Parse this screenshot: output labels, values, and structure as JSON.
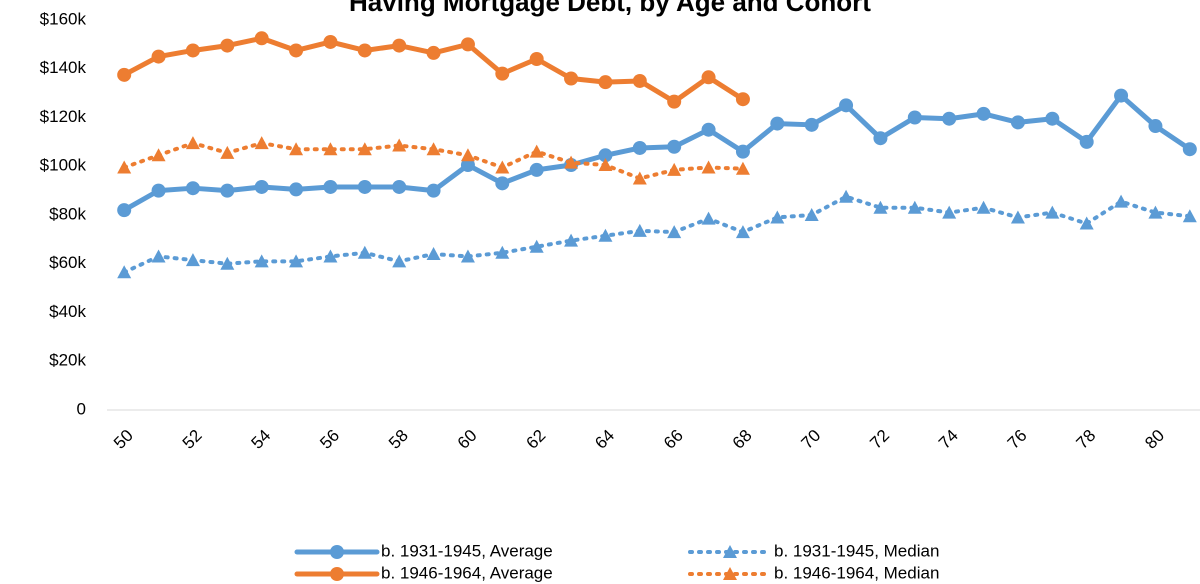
{
  "chart_data": {
    "type": "line",
    "title": "Having Mortgage Debt, by Age and Cohort",
    "x": [
      50,
      51,
      52,
      53,
      54,
      55,
      56,
      57,
      58,
      59,
      60,
      61,
      62,
      63,
      64,
      65,
      66,
      67,
      68,
      69,
      70,
      71,
      72,
      73,
      74,
      75,
      76,
      77,
      78,
      79,
      80,
      81
    ],
    "xlim": [
      49.5,
      81.5
    ],
    "xticks": [
      50,
      52,
      54,
      56,
      58,
      60,
      62,
      64,
      66,
      68,
      70,
      72,
      74,
      76,
      78,
      80
    ],
    "ylim": [
      0,
      160000
    ],
    "yticks": [
      0,
      {
        "value": 20000,
        "label": "$20k"
      },
      {
        "value": 40000,
        "label": "$40k"
      },
      {
        "value": 60000,
        "label": "$60k"
      },
      {
        "value": 80000,
        "label": "$80k"
      },
      {
        "value": 100000,
        "label": "$100k"
      },
      {
        "value": 120000,
        "label": "$120k"
      },
      {
        "value": 140000,
        "label": "$140k"
      },
      {
        "value": 160000,
        "label": "$160k"
      }
    ],
    "grid": false,
    "series": [
      {
        "name": "b. 1931-1945, Average",
        "color": "#5b9bd5",
        "line_style": "solid",
        "marker": "circle",
        "values": [
          82000,
          90000,
          91000,
          90000,
          91500,
          90500,
          91500,
          91500,
          91500,
          90000,
          100500,
          93000,
          98500,
          100500,
          104500,
          107500,
          108000,
          115000,
          106000,
          117500,
          117000,
          125000,
          111500,
          120000,
          119500,
          121500,
          118000,
          119500,
          110000,
          129000,
          116500,
          107000
        ]
      },
      {
        "name": "b. 1931-1945, Median",
        "color": "#5b9bd5",
        "line_style": "dotted",
        "marker": "triangle",
        "values": [
          56500,
          63000,
          61500,
          60000,
          61000,
          61000,
          63000,
          64500,
          61000,
          64000,
          63000,
          64500,
          67000,
          69500,
          71500,
          73500,
          73000,
          78500,
          73000,
          79000,
          80000,
          87500,
          83000,
          83000,
          81000,
          83000,
          79000,
          81000,
          76500,
          85500,
          81000,
          79500
        ]
      },
      {
        "name": "b. 1946-1964, Average",
        "color": "#ed7d31",
        "line_style": "solid",
        "marker": "circle",
        "values": [
          137500,
          145000,
          147500,
          149500,
          152500,
          147500,
          151000,
          147500,
          149500,
          146500,
          150000,
          138000,
          144000,
          136000,
          134500,
          135000,
          126500,
          136500,
          127500,
          null,
          null,
          null,
          null,
          null,
          null,
          null,
          null,
          null,
          null,
          null,
          null,
          null
        ]
      },
      {
        "name": "b. 1946-1964, Median",
        "color": "#ed7d31",
        "line_style": "dotted",
        "marker": "triangle",
        "values": [
          99500,
          104500,
          109500,
          105500,
          109500,
          107000,
          107000,
          107000,
          108500,
          107000,
          104500,
          99500,
          106000,
          101500,
          100500,
          95000,
          98500,
          99500,
          99000,
          null,
          null,
          null,
          null,
          null,
          null,
          null,
          null,
          null,
          null,
          null,
          null,
          null
        ]
      }
    ]
  }
}
